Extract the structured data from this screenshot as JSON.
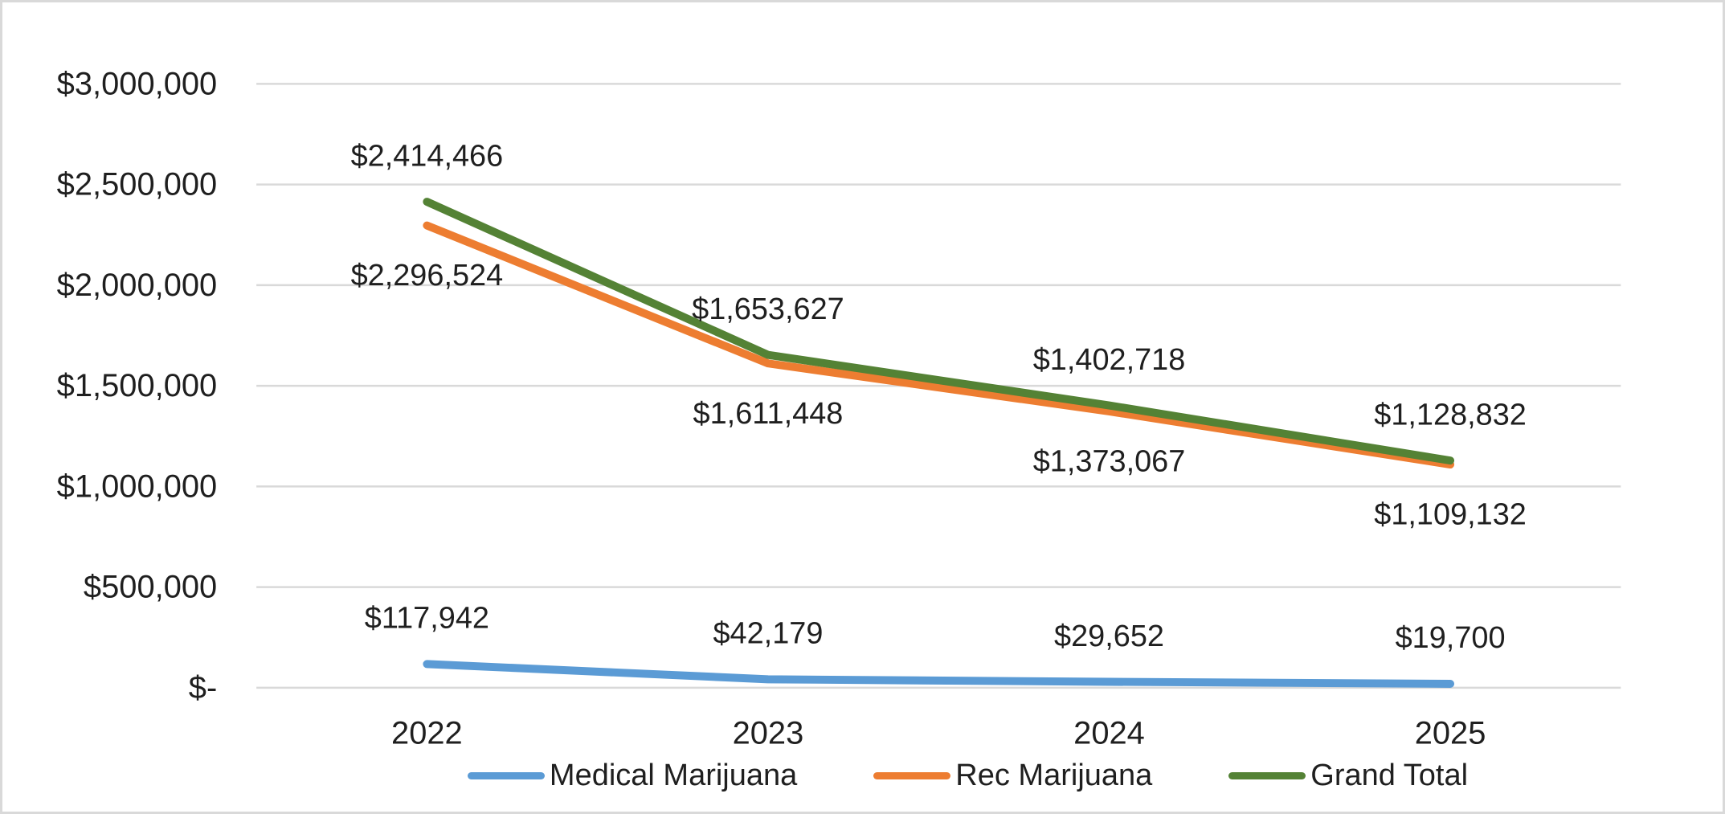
{
  "chart_data": {
    "type": "line",
    "categories": [
      "2022",
      "2023",
      "2024",
      "2025"
    ],
    "series": [
      {
        "name": "Medical Marijuana",
        "color": "#5B9BD5",
        "values": [
          117942,
          42179,
          29652,
          19700
        ],
        "labels": [
          "$117,942",
          "$42,179",
          "$29,652",
          "$19,700"
        ],
        "label_position": "above"
      },
      {
        "name": "Rec Marijuana",
        "color": "#ED7D31",
        "values": [
          2296524,
          1611448,
          1373067,
          1109132
        ],
        "labels": [
          "$2,296,524",
          "$1,611,448",
          "$1,373,067",
          "$1,109,132"
        ],
        "label_position": "below"
      },
      {
        "name": "Grand Total",
        "color": "#548235",
        "values": [
          2414466,
          1653627,
          1402718,
          1128832
        ],
        "labels": [
          "$2,414,466",
          "$1,653,627",
          "$1,402,718",
          "$1,128,832"
        ],
        "label_position": "above"
      }
    ],
    "y_axis": {
      "min": 0,
      "max": 3000000,
      "step": 500000,
      "tick_labels": [
        "$3,000,000",
        "$2,500,000",
        "$2,000,000",
        "$1,500,000",
        "$1,000,000",
        "$500,000",
        "$-"
      ]
    },
    "legend_position": "bottom",
    "grid": true,
    "colors": {
      "gridline": "#D9D9D9",
      "frame_border": "#D9D9D9",
      "text": "#1F1F1F",
      "background": "#FFFFFF"
    }
  }
}
